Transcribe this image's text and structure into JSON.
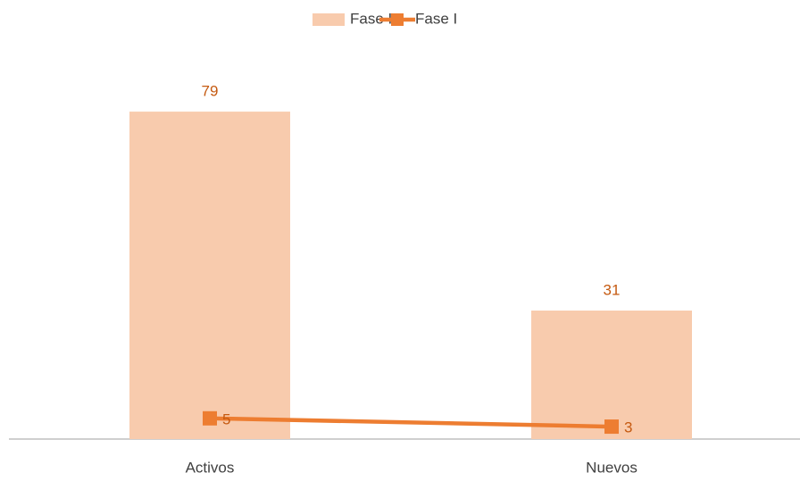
{
  "chart_data": {
    "type": "bar",
    "categories": [
      "Activos",
      "Nuevos"
    ],
    "series": [
      {
        "name": "Fase II",
        "type": "bar",
        "color": "#f8cbad",
        "values": [
          79,
          31
        ]
      },
      {
        "name": "Fase I",
        "type": "line",
        "color": "#ed7d31",
        "values": [
          5,
          3
        ]
      }
    ],
    "ylim": [
      0,
      90
    ],
    "legend": "top"
  }
}
